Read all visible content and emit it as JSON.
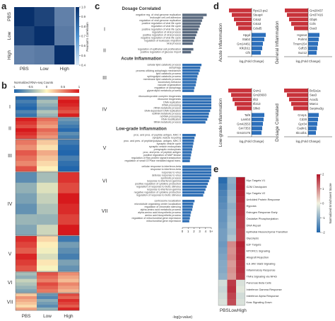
{
  "panels": {
    "a": {
      "letter": "a",
      "rows": [
        "PBS",
        "Low",
        "High"
      ],
      "cols": [
        "PBS",
        "Low",
        "High"
      ],
      "colorbar_label": "Pearson's Correlation",
      "colorbar_ticks": [
        "1.0",
        "0.9",
        "0.8",
        "0.7",
        "0.6",
        "0.5",
        "0.4"
      ]
    },
    "b": {
      "letter": "b",
      "colorbar_label": "Normalized RNA-seq Counts",
      "colorbar_ticks": [
        "-1",
        "-0.5",
        "0",
        "0.5",
        "1"
      ],
      "clusters": [
        "I",
        "II",
        "III",
        "IV",
        "V",
        "VI",
        "VII"
      ],
      "cols": [
        "PBS",
        "Low",
        "High"
      ]
    },
    "c": {
      "letter": "c",
      "xlabel": "-log(p-value)",
      "xticks": [
        "0",
        "1",
        "2",
        "3",
        "4",
        "5+"
      ],
      "sections": [
        {
          "header": "Dosage Correlated",
          "groups": [
            {
              "numeral": "I",
              "terms": [
                "negative reg. of viral genome replication",
                "leukocyte cell-cell adhesion",
                "regulation of viral genome replication",
                "positive regulation of viral life cycle",
                "regulation of viral life cycle",
                "positive regulation of viral life cycle",
                "regulation of viral process",
                "positive regulation of viral process",
                "negative regulation of viral life cycle",
                "regulation of leukocyte migration",
                "viral process"
              ],
              "values": [
                4.2,
                3.6,
                3.4,
                3.2,
                3.0,
                2.8,
                2.6,
                2.4,
                2.2,
                2.0,
                1.8
              ]
            },
            {
              "numeral": "II",
              "terms": [
                "regulation of epithelial cell proliferation",
                "positive regulation of glucose import"
              ],
              "values": [
                1.9,
                1.5
              ]
            }
          ]
        },
        {
          "header": "Acute Inflammation",
          "groups": [
            {
              "numeral": "III",
              "terms": [
                "cellular lipid catabolic process",
                "autophagy",
                "process utilizing autophagic mechanism",
                "lipid catabolic process",
                "sphingolipid catabolic process",
                "membrane lipid catabolic process",
                "locomotory behavior",
                "vacuole organization",
                "regulation of autophagy",
                "glycerolipid metabolic process"
              ],
              "values": [
                3.3,
                3.1,
                3.0,
                2.8,
                2.6,
                2.5,
                2.4,
                2.3,
                2.1,
                2.0
              ]
            },
            {
              "numeral": "IV",
              "terms": [
                "ribonucleoprotein complex biogenesis",
                "ribosome biogenesis",
                "DNA replication",
                "rRNA processing",
                "rRNA metabolic process",
                "DNA-dependent DNA replication",
                "ncRNA metabolic process",
                "ncRNA processing",
                "RNA modification",
                "tRNA metabolic process"
              ],
              "values": [
                5,
                5,
                5,
                5,
                5,
                4.8,
                4.6,
                4.5,
                4.3,
                4.0
              ]
            }
          ]
        },
        {
          "header": "Low-grade Inflammation",
          "groups": [
            {
              "numeral": "V",
              "terms": [
                "proc. and pres. of peptide antigen, MHC II",
                "synaptic vesicle recycling",
                "proc. and pres. of peptide/polysac. antigen, MHC II",
                "synaptic vesicle cycle",
                "synaptic vesicle endocytosis",
                "presynaptic endocytosis",
                "proc. and pres. of peptide antigen",
                "positive regulation of MAP kinase",
                "regulation of Ras protein signal transduction",
                "regulation of small GTPase mediated signal trans."
              ],
              "values": [
                2.3,
                2.1,
                2.0,
                1.9,
                1.8,
                1.7,
                1.6,
                1.5,
                1.4,
                1.3
              ]
            },
            {
              "numeral": "VI",
              "terms": [
                "cellular response to interferon-beta",
                "response to interferon-beta",
                "response to virus",
                "defense response to virus",
                "symbiotic process",
                "response to interferon-gamma",
                "positive regulation of cytokine production",
                "regulation of response to biotic stimulus",
                "response to interferon-gamma",
                "negative regulation of cytokine production",
                "regulation of response to biotic stimulus"
              ],
              "values": [
                5,
                5,
                5,
                5,
                4.8,
                4.6,
                4.4,
                4.2,
                4.0,
                3.8,
                3.6
              ]
            },
            {
              "numeral": "VII",
              "terms": [
                "centrosome localization",
                "microtubule organizing center localization",
                "regulation of chromatin silencing",
                "alpha-amino acid metabolic process",
                "alpha-amino acid biosynthetic process",
                "amino acid biosynthetic process",
                "regulation of mitochondrial gene expression",
                "mitochondrial gene expression"
              ],
              "values": [
                2.1,
                1.9,
                1.8,
                1.7,
                1.5,
                1.4,
                1.3,
                1.2
              ]
            }
          ]
        }
      ]
    },
    "d": {
      "letter": "d",
      "xlabel": "log₂(Fold Change)",
      "quadrants": [
        {
          "title": "Acute Inflammation",
          "up": [
            "Rps13-ps2",
            "Steap4",
            "Csta2",
            "Csta3",
            "Cdsd5"
          ],
          "up_values": [
            3.2,
            2.8,
            2.5,
            2.2,
            1.9
          ],
          "down": [
            "Hpgd",
            "Stab2",
            "Gm14461",
            "Klk1b11",
            "Cfh"
          ],
          "down_values": [
            2.0,
            1.8,
            1.6,
            1.5,
            1.3
          ]
        },
        {
          "title": "General Inflammation",
          "up": [
            "Gm28437",
            "Gm37416",
            "Gbp6",
            "Ccl5",
            "Oas3"
          ],
          "up_values": [
            3.3,
            3.0,
            2.7,
            2.4,
            2.0
          ],
          "down": [
            "Hgsnat",
            "Polrmt",
            "Tmem154",
            "Gdf15",
            "Suz12"
          ],
          "down_values": [
            1.6,
            1.5,
            1.4,
            1.3,
            1.2
          ]
        },
        {
          "title": "Low-grade Inflammation",
          "up": [
            "Gvin1",
            "Gm28693",
            "Ifit3",
            "Ifi213",
            "Slfn8"
          ],
          "up_values": [
            3.3,
            2.9,
            2.7,
            2.4,
            2.1
          ],
          "down": [
            "Taf9",
            "Lamb3",
            "Gm42553",
            "Gm7353",
            "Gm10175"
          ],
          "down_values": [
            1.8,
            1.7,
            1.6,
            1.5,
            1.4
          ]
        },
        {
          "title": "Dosage Correlated",
          "up": [
            "Bcl2a1a",
            "Saa3",
            "Acod1",
            "Marco",
            "Serpina3g"
          ],
          "up_values": [
            3.4,
            3.0,
            2.7,
            2.4,
            2.1
          ],
          "down": [
            "Cnnp1",
            "Cd28",
            "Gpr34",
            "Cadm1",
            "Slco2b1"
          ],
          "down_values": [
            1.5,
            1.4,
            1.3,
            1.2,
            1.1
          ]
        }
      ]
    },
    "e": {
      "letter": "e",
      "cols": [
        "PBS",
        "Low",
        "High"
      ],
      "pathways": [
        "Myc Targets V1",
        "G2M Checkpoint",
        "Myc Targets V2",
        "Unfolded Protein Response",
        "Hypoxia",
        "Estrogen Response Early",
        "Oxidative Phosphorylation",
        "DNA Repair",
        "Epithelial Mesenchymal Transition",
        "Glycolysis",
        "E2F Targets",
        "MTORC1 Signaling",
        "Allograft Rejection",
        "IL6 JAK Stat3 Signaling",
        "Inflammatory Response",
        "TNFa Signaling via NFkb",
        "Pancreas Beta Cells",
        "Interferon Gamma Response",
        "Interferon Alpha Response",
        "Kras Signaling Down"
      ],
      "scores": [
        [
          -2.4,
          -1.2,
          2.6
        ],
        [
          -2.2,
          -1.3,
          2.5
        ],
        [
          -2.0,
          -1.1,
          2.4
        ],
        [
          -1.9,
          -1.0,
          2.3
        ],
        [
          -1.8,
          -1.2,
          2.2
        ],
        [
          -1.7,
          -1.1,
          2.2
        ],
        [
          -1.7,
          -1.0,
          2.1
        ],
        [
          -1.6,
          -0.9,
          2.1
        ],
        [
          -1.5,
          -1.0,
          2.0
        ],
        [
          -1.5,
          -0.8,
          2.0
        ],
        [
          -1.6,
          1.2,
          2.4
        ],
        [
          -1.5,
          1.1,
          2.3
        ],
        [
          -1.4,
          1.2,
          2.3
        ],
        [
          -1.3,
          1.0,
          2.2
        ],
        [
          -1.3,
          1.1,
          2.2
        ],
        [
          -1.2,
          1.0,
          2.1
        ],
        [
          -0.4,
          2.1,
          -0.3
        ],
        [
          -0.5,
          2.2,
          -0.2
        ],
        [
          -0.4,
          2.0,
          -0.4
        ],
        [
          -0.3,
          1.9,
          -0.3
        ]
      ],
      "colorbar_label": "Normalized Enrichment Score",
      "colorbar_ticks": [
        "2",
        "1",
        "0",
        "-1",
        "-2"
      ]
    }
  }
}
